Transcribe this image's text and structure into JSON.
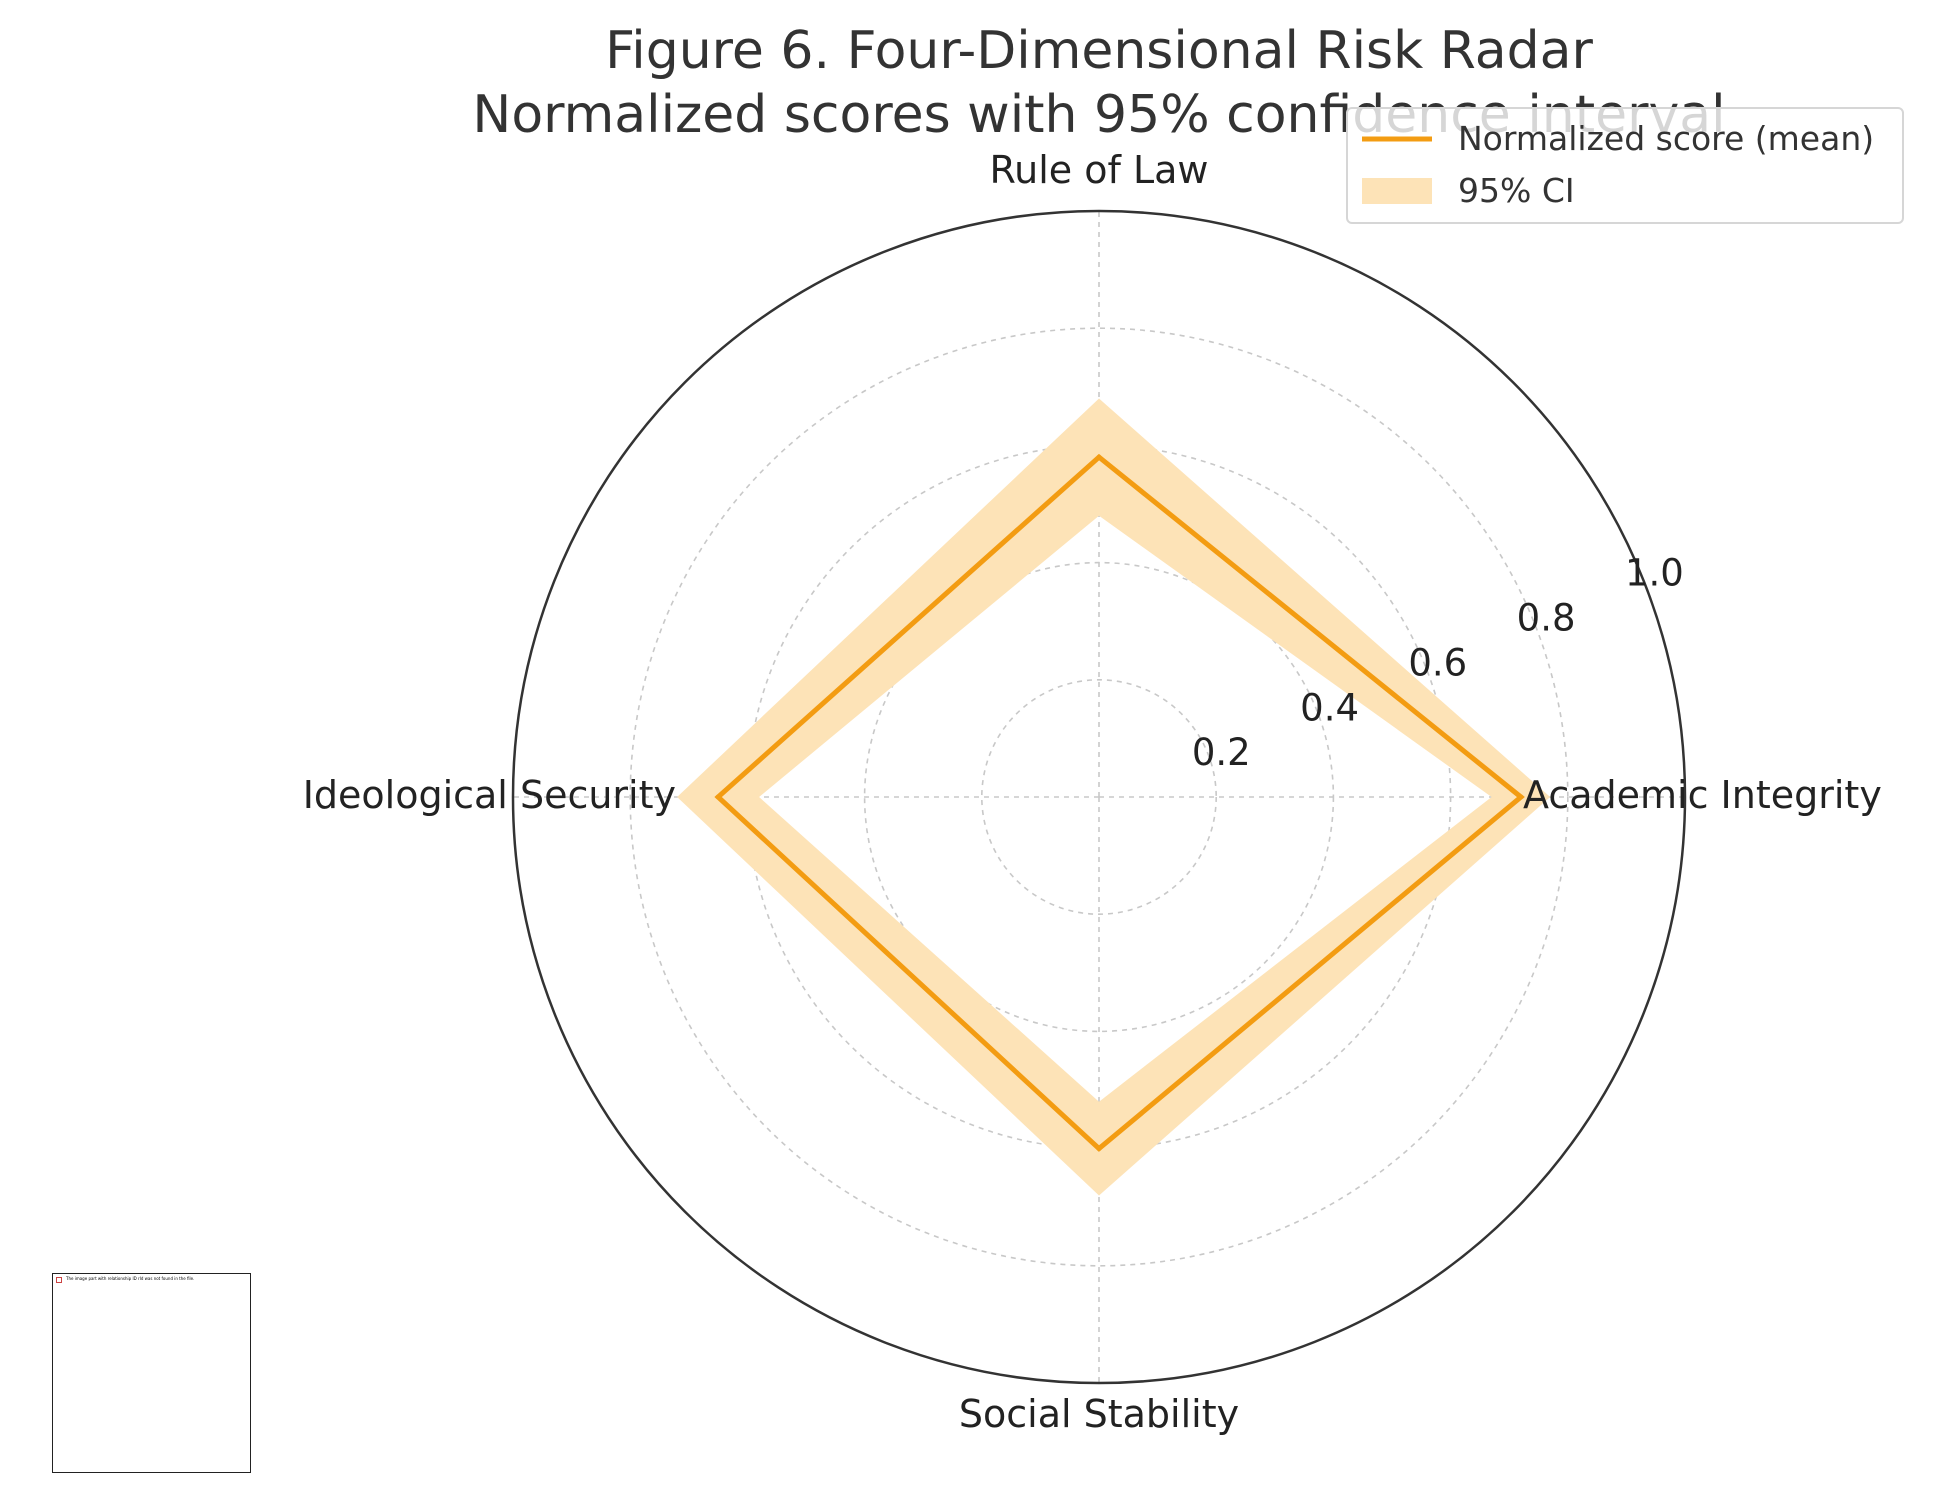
{
  "chart_data": {
    "type": "radar",
    "title_line1": "Figure 6. Four-Dimensional Risk Radar",
    "title_line2": "Normalized scores with 95% confidence interval",
    "categories": [
      "Academic Integrity",
      "Rule of Law",
      "Ideological Security",
      "Social Stability"
    ],
    "series": [
      {
        "name": "Normalized score (mean)",
        "values": [
          0.72,
          0.58,
          0.65,
          0.6
        ],
        "color": "#f39c12"
      }
    ],
    "ci": {
      "name": "95% CI",
      "lower": [
        0.67,
        0.48,
        0.58,
        0.52
      ],
      "upper": [
        0.77,
        0.68,
        0.72,
        0.68
      ],
      "color": "#fde3b7"
    },
    "r_ticks": [
      "0.2",
      "0.4",
      "0.6",
      "0.8",
      "1.0"
    ],
    "r_tick_values": [
      0.2,
      0.4,
      0.6,
      0.8,
      1.0
    ],
    "rlim": [
      0,
      1.0
    ],
    "grid": true,
    "legend_position": "top-right"
  },
  "thumbnail": {
    "caption": "The image part with relationship ID rId was not found in the file."
  }
}
